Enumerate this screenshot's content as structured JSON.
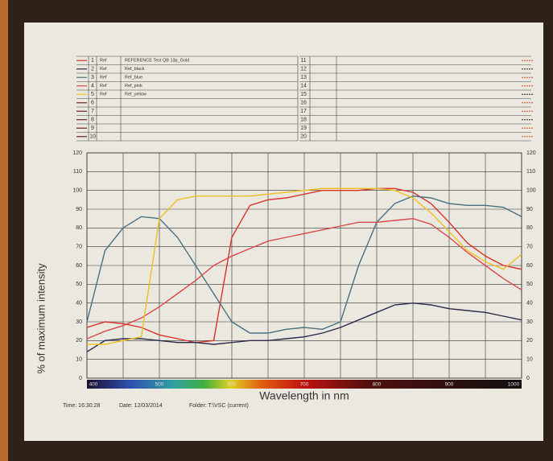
{
  "chart_data": {
    "type": "line",
    "ylabel": "% of maximum intensity",
    "xlabel": "Wavelength in nm",
    "x": [
      400,
      425,
      450,
      475,
      500,
      525,
      550,
      575,
      600,
      625,
      650,
      675,
      700,
      725,
      750,
      775,
      800,
      825,
      850,
      875,
      900,
      925,
      950,
      975,
      1000
    ],
    "series": [
      {
        "name": "REFERENCE Test QB 13p_Gold",
        "color": "#d8322a",
        "values": [
          27,
          30,
          29,
          27,
          23,
          21,
          19,
          20,
          75,
          92,
          95,
          96,
          98,
          100,
          100,
          100,
          101,
          101,
          99,
          93,
          83,
          72,
          65,
          60,
          58
        ]
      },
      {
        "name": "Ref_black",
        "color": "#2a2a4a",
        "values": [
          14,
          20,
          21,
          21,
          20,
          19,
          19,
          18,
          19,
          20,
          20,
          21,
          22,
          24,
          27,
          31,
          35,
          39,
          40,
          39,
          37,
          36,
          35,
          33,
          31
        ]
      },
      {
        "name": "Ref_blue",
        "color": "#4a7080",
        "values": [
          30,
          68,
          80,
          86,
          85,
          75,
          60,
          45,
          30,
          24,
          24,
          26,
          27,
          26,
          30,
          60,
          83,
          93,
          97,
          96,
          93,
          92,
          92,
          91,
          86
        ]
      },
      {
        "name": "Ref_pink",
        "color": "#d84a4a",
        "values": [
          21,
          25,
          28,
          32,
          38,
          45,
          52,
          60,
          65,
          69,
          73,
          75,
          77,
          79,
          81,
          83,
          83,
          84,
          85,
          82,
          75,
          67,
          60,
          53,
          47
        ]
      },
      {
        "name": "Ref_yellow",
        "color": "#f0c020",
        "values": [
          18,
          18,
          20,
          22,
          85,
          95,
          97,
          97,
          97,
          97,
          98,
          99,
          100,
          101,
          101,
          101,
          101,
          100,
          96,
          88,
          78,
          68,
          62,
          58,
          66
        ]
      }
    ],
    "xlim": [
      400,
      1000
    ],
    "xticks": [
      400,
      500,
      600,
      700,
      800,
      900,
      1000
    ],
    "xminor": [
      450,
      550,
      650,
      750,
      850,
      950
    ],
    "ylim": [
      0,
      120
    ],
    "yticks": [
      0,
      10,
      20,
      30,
      40,
      50,
      60,
      70,
      80,
      90,
      100,
      110,
      120
    ],
    "grid": true
  },
  "table": {
    "numbers": [
      1,
      2,
      3,
      4,
      5,
      6,
      7,
      8,
      9,
      10,
      11,
      12,
      13,
      14,
      15,
      16,
      17,
      18,
      19,
      20
    ],
    "kind": [
      "Ref",
      "Ref",
      "Ref",
      "Ref",
      "Ref"
    ]
  },
  "footer": {
    "time": "Time: 16:30:28",
    "date": "Date: 12/03/2014",
    "folder": "Folder: T:\\VSC (current)"
  }
}
